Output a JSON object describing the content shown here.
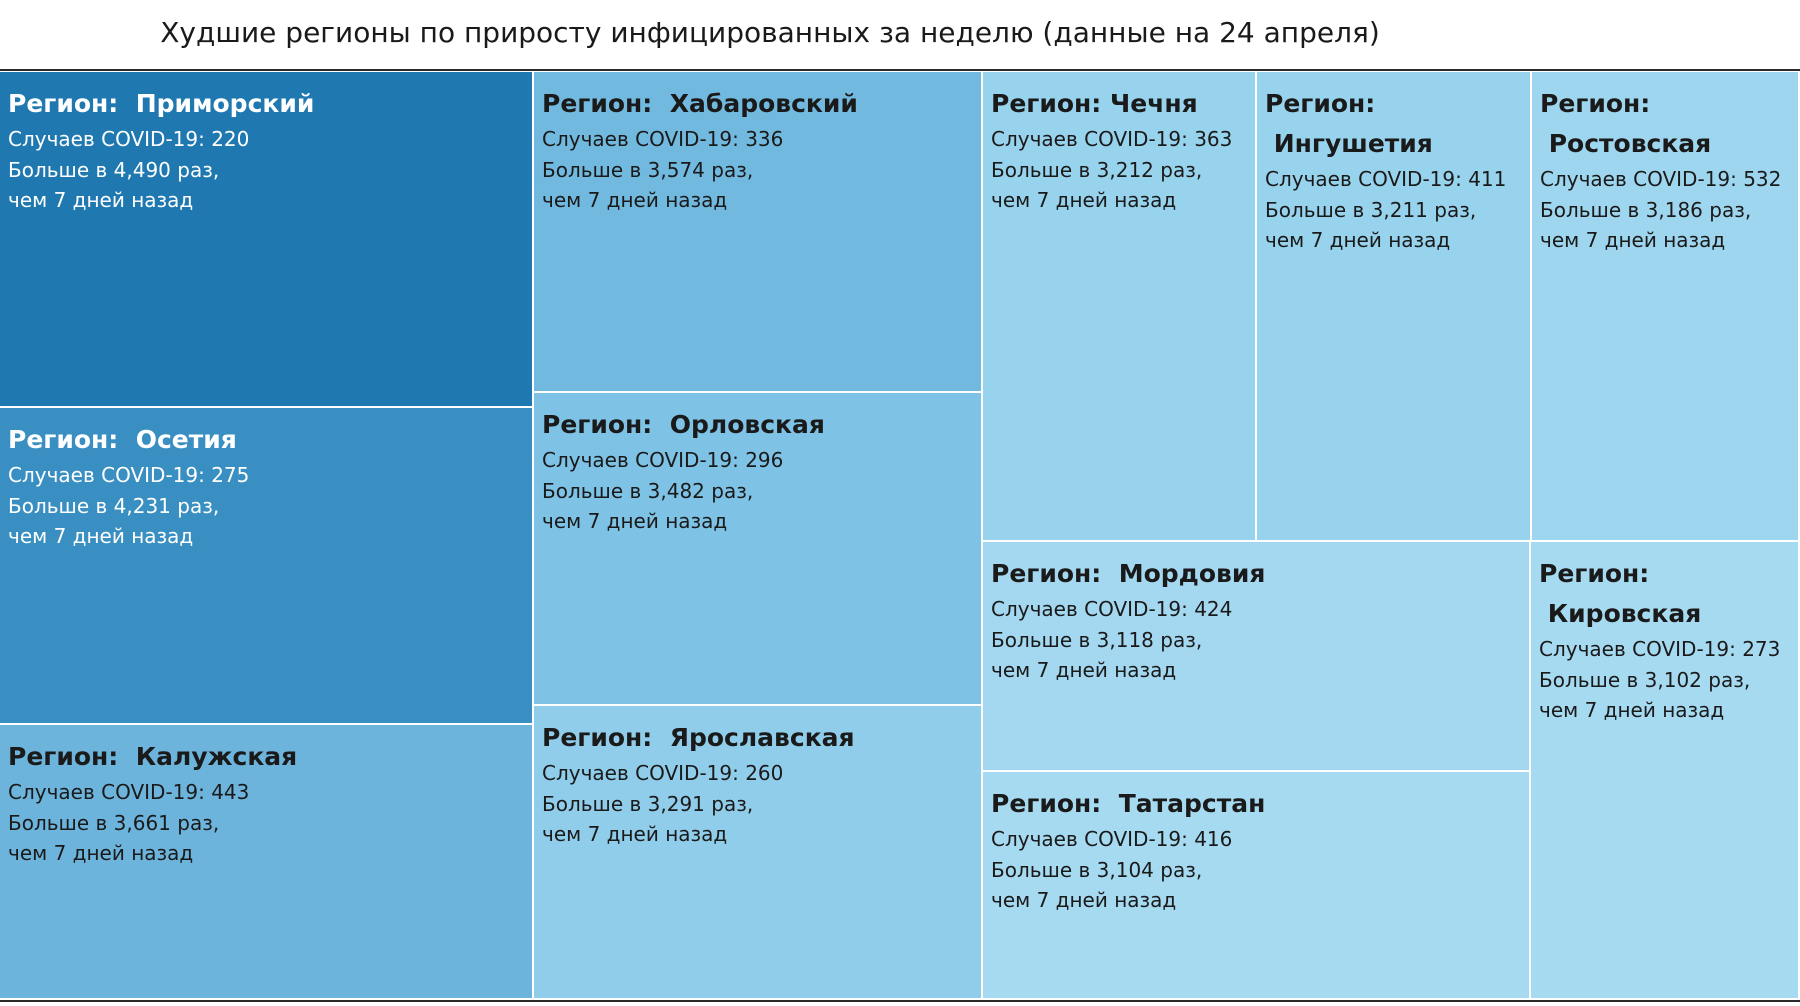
{
  "chart_data": {
    "type": "treemap",
    "title": "Худшие регионы по приросту инфицированных за неделю (данные на 24 апреля)",
    "region_label": "Регион:",
    "cases_label": "Случаев COVID-19:",
    "growth_prefix": "Больше в",
    "growth_suffix": "раз,",
    "period_text": "чем 7 дней назад",
    "items": [
      {
        "region": "Приморский",
        "cases": "220",
        "growth": "4,490",
        "color": "#1f79b0",
        "text_color": "#ffffff"
      },
      {
        "region": "Осетия",
        "cases": "275",
        "growth": "4,231",
        "color": "#3a8fc2",
        "text_color": "#ffffff"
      },
      {
        "region": "Калужская",
        "cases": "443",
        "growth": "3,661",
        "color": "#6db4dc",
        "text_color": "#1a1a1a"
      },
      {
        "region": "Хабаровский",
        "cases": "336",
        "growth": "3,574",
        "color": "#72b9df",
        "text_color": "#1a1a1a"
      },
      {
        "region": "Орловская",
        "cases": "296",
        "growth": "3,482",
        "color": "#7ec2e5",
        "text_color": "#1a1a1a"
      },
      {
        "region": "Ярославская",
        "cases": "260",
        "growth": "3,291",
        "color": "#90cdea",
        "text_color": "#1a1a1a"
      },
      {
        "region": "Чечня",
        "cases": "363",
        "growth": "3,212",
        "color": "#98d3ee",
        "text_color": "#1a1a1a"
      },
      {
        "region": "Ингушетия",
        "cases": "411",
        "growth": "3,211",
        "color": "#98d3ee",
        "text_color": "#1a1a1a"
      },
      {
        "region": "Ростовская",
        "cases": "532",
        "growth": "3,186",
        "color": "#9ed6ef",
        "text_color": "#1a1a1a"
      },
      {
        "region": "Мордовия",
        "cases": "424",
        "growth": "3,118",
        "color": "#a3d8f0",
        "text_color": "#1a1a1a"
      },
      {
        "region": "Татарстан",
        "cases": "416",
        "growth": "3,104",
        "color": "#a6daf1",
        "text_color": "#1a1a1a"
      },
      {
        "region": "Кировская",
        "cases": "273",
        "growth": "3,102",
        "color": "#a6daf1",
        "text_color": "#1a1a1a"
      }
    ]
  }
}
